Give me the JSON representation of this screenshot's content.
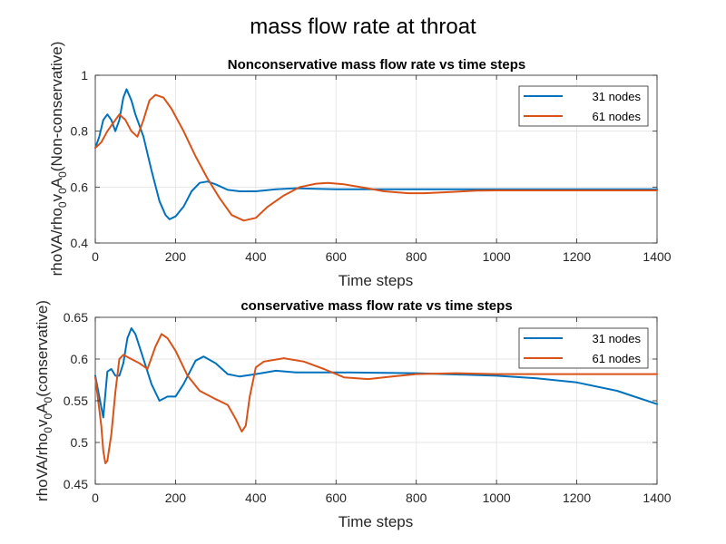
{
  "figure_title": "mass flow rate at throat",
  "colors": {
    "series_31": "#0072BD",
    "series_61": "#D95319",
    "grid": "#e6e6e6",
    "axis": "#262626"
  },
  "chart_data": [
    {
      "type": "line",
      "title": "Nonconservative mass flow rate vs time steps",
      "xlabel": "Time steps",
      "ylabel": {
        "base": "rhoVA/rho",
        "s1": "0",
        "mid1": "v",
        "s2": "0",
        "mid2": "A",
        "s3": "0",
        "tail": "(Non-conservative)"
      },
      "xlim": [
        0,
        1400
      ],
      "ylim": [
        0.4,
        1
      ],
      "xticks": [
        0,
        200,
        400,
        600,
        800,
        1000,
        1200,
        1400
      ],
      "yticks": [
        0.4,
        0.6,
        0.8,
        1
      ],
      "ytick_labels": [
        "0.4",
        "0.6",
        "0.8",
        "1"
      ],
      "grid": true,
      "legend": "top-right",
      "series": [
        {
          "name": "31 nodes",
          "color": "#0072BD",
          "points": [
            [
              0,
              0.74
            ],
            [
              10,
              0.78
            ],
            [
              20,
              0.84
            ],
            [
              30,
              0.86
            ],
            [
              40,
              0.84
            ],
            [
              50,
              0.8
            ],
            [
              60,
              0.84
            ],
            [
              70,
              0.92
            ],
            [
              78,
              0.95
            ],
            [
              90,
              0.91
            ],
            [
              100,
              0.86
            ],
            [
              120,
              0.78
            ],
            [
              140,
              0.66
            ],
            [
              160,
              0.55
            ],
            [
              175,
              0.5
            ],
            [
              185,
              0.485
            ],
            [
              200,
              0.495
            ],
            [
              220,
              0.53
            ],
            [
              240,
              0.585
            ],
            [
              260,
              0.615
            ],
            [
              280,
              0.62
            ],
            [
              300,
              0.61
            ],
            [
              330,
              0.59
            ],
            [
              360,
              0.585
            ],
            [
              400,
              0.585
            ],
            [
              450,
              0.592
            ],
            [
              500,
              0.596
            ],
            [
              550,
              0.594
            ],
            [
              600,
              0.592
            ],
            [
              700,
              0.592
            ],
            [
              800,
              0.592
            ],
            [
              1000,
              0.592
            ],
            [
              1200,
              0.592
            ],
            [
              1400,
              0.592
            ]
          ]
        },
        {
          "name": "61 nodes",
          "color": "#D95319",
          "points": [
            [
              0,
              0.74
            ],
            [
              15,
              0.76
            ],
            [
              30,
              0.8
            ],
            [
              50,
              0.84
            ],
            [
              60,
              0.86
            ],
            [
              75,
              0.84
            ],
            [
              90,
              0.8
            ],
            [
              105,
              0.78
            ],
            [
              120,
              0.84
            ],
            [
              135,
              0.91
            ],
            [
              150,
              0.93
            ],
            [
              170,
              0.92
            ],
            [
              190,
              0.88
            ],
            [
              220,
              0.8
            ],
            [
              250,
              0.71
            ],
            [
              280,
              0.63
            ],
            [
              310,
              0.56
            ],
            [
              340,
              0.5
            ],
            [
              370,
              0.48
            ],
            [
              400,
              0.49
            ],
            [
              430,
              0.53
            ],
            [
              470,
              0.57
            ],
            [
              510,
              0.6
            ],
            [
              550,
              0.612
            ],
            [
              580,
              0.615
            ],
            [
              620,
              0.61
            ],
            [
              670,
              0.598
            ],
            [
              720,
              0.585
            ],
            [
              780,
              0.578
            ],
            [
              820,
              0.578
            ],
            [
              880,
              0.582
            ],
            [
              950,
              0.587
            ],
            [
              1000,
              0.588
            ],
            [
              1100,
              0.588
            ],
            [
              1200,
              0.588
            ],
            [
              1400,
              0.588
            ]
          ]
        }
      ]
    },
    {
      "type": "line",
      "title": "conservative mass flow rate vs time steps",
      "xlabel": "Time steps",
      "ylabel": {
        "base": "rhoVA/rho",
        "s1": "0",
        "mid1": "v",
        "s2": "0",
        "mid2": "A",
        "s3": "0",
        "tail": "(conservative)"
      },
      "xlim": [
        0,
        1400
      ],
      "ylim": [
        0.45,
        0.65
      ],
      "xticks": [
        0,
        200,
        400,
        600,
        800,
        1000,
        1200,
        1400
      ],
      "yticks": [
        0.45,
        0.5,
        0.55,
        0.6,
        0.65
      ],
      "ytick_labels": [
        "0.45",
        "0.5",
        "0.55",
        "0.6",
        "0.65"
      ],
      "grid": true,
      "legend": "top-right",
      "series": [
        {
          "name": "31 nodes",
          "color": "#0072BD",
          "points": [
            [
              0,
              0.58
            ],
            [
              10,
              0.555
            ],
            [
              20,
              0.53
            ],
            [
              30,
              0.585
            ],
            [
              40,
              0.588
            ],
            [
              50,
              0.58
            ],
            [
              60,
              0.58
            ],
            [
              70,
              0.595
            ],
            [
              80,
              0.625
            ],
            [
              90,
              0.637
            ],
            [
              100,
              0.63
            ],
            [
              120,
              0.6
            ],
            [
              140,
              0.57
            ],
            [
              160,
              0.55
            ],
            [
              180,
              0.555
            ],
            [
              200,
              0.555
            ],
            [
              220,
              0.57
            ],
            [
              250,
              0.598
            ],
            [
              270,
              0.603
            ],
            [
              300,
              0.595
            ],
            [
              330,
              0.582
            ],
            [
              360,
              0.579
            ],
            [
              400,
              0.582
            ],
            [
              450,
              0.586
            ],
            [
              500,
              0.584
            ],
            [
              600,
              0.584
            ],
            [
              800,
              0.583
            ],
            [
              1000,
              0.58
            ],
            [
              1100,
              0.577
            ],
            [
              1200,
              0.572
            ],
            [
              1300,
              0.562
            ],
            [
              1400,
              0.546
            ]
          ]
        },
        {
          "name": "61 nodes",
          "color": "#D95319",
          "points": [
            [
              0,
              0.578
            ],
            [
              10,
              0.54
            ],
            [
              15,
              0.52
            ],
            [
              20,
              0.49
            ],
            [
              25,
              0.475
            ],
            [
              30,
              0.478
            ],
            [
              40,
              0.51
            ],
            [
              50,
              0.56
            ],
            [
              60,
              0.6
            ],
            [
              70,
              0.605
            ],
            [
              90,
              0.6
            ],
            [
              110,
              0.595
            ],
            [
              130,
              0.588
            ],
            [
              150,
              0.615
            ],
            [
              165,
              0.63
            ],
            [
              180,
              0.625
            ],
            [
              200,
              0.61
            ],
            [
              230,
              0.58
            ],
            [
              260,
              0.562
            ],
            [
              300,
              0.552
            ],
            [
              330,
              0.545
            ],
            [
              350,
              0.528
            ],
            [
              365,
              0.513
            ],
            [
              375,
              0.52
            ],
            [
              385,
              0.555
            ],
            [
              400,
              0.59
            ],
            [
              420,
              0.597
            ],
            [
              470,
              0.601
            ],
            [
              520,
              0.597
            ],
            [
              570,
              0.588
            ],
            [
              620,
              0.578
            ],
            [
              680,
              0.576
            ],
            [
              740,
              0.579
            ],
            [
              800,
              0.582
            ],
            [
              900,
              0.583
            ],
            [
              1000,
              0.582
            ],
            [
              1100,
              0.582
            ],
            [
              1400,
              0.582
            ]
          ]
        }
      ]
    }
  ]
}
